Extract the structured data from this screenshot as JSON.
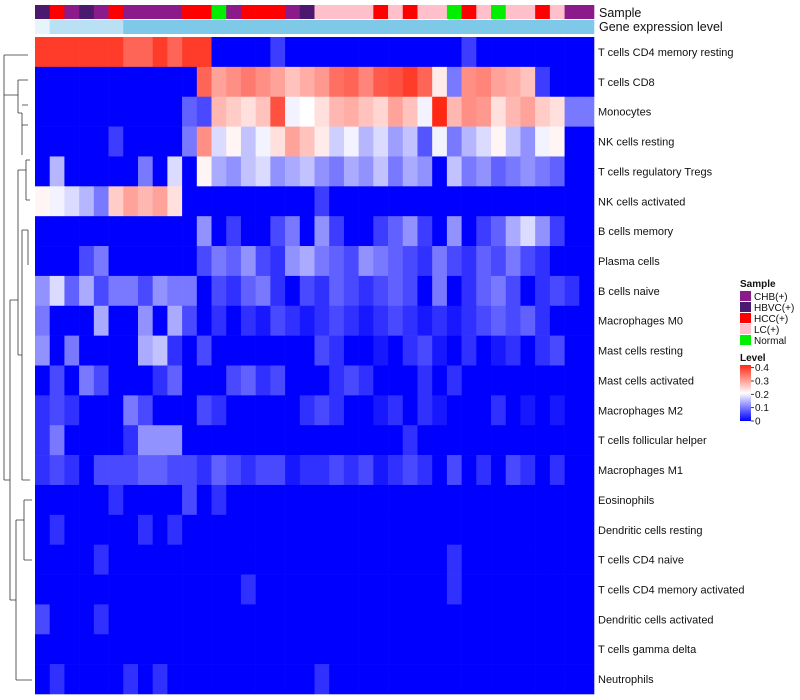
{
  "chart_data": {
    "type": "heatmap",
    "title": "",
    "annotation_tracks": [
      "Sample",
      "Gene expression level"
    ],
    "legend": {
      "sample_title": "Sample",
      "sample_groups": [
        {
          "label": "CHB(+)",
          "color": "#8B1A8B"
        },
        {
          "label": "HBVC(+)",
          "color": "#4B1A6E"
        },
        {
          "label": "HCC(+)",
          "color": "#FF0000"
        },
        {
          "label": "LC(+)",
          "color": "#FFC0CB"
        },
        {
          "label": "Normal",
          "color": "#00EE00"
        }
      ],
      "level_title": "Level",
      "level_ticks": [
        "0.4",
        "0.3",
        "0.2",
        "0.1",
        "0"
      ],
      "level_range": [
        0,
        0.42
      ]
    },
    "gene_expression_level_color": "#7EC8E8",
    "sample_group_sequence": [
      "HBVC",
      "HCC",
      "CHB",
      "HBVC",
      "CHB",
      "HCC",
      "CHB",
      "CHB",
      "CHB",
      "CHB",
      "HCC",
      "HCC",
      "Normal",
      "CHB",
      "HCC",
      "HCC",
      "HCC",
      "CHB",
      "HBVC",
      "LC",
      "LC",
      "LC",
      "LC",
      "HCC",
      "LC",
      "HCC",
      "LC",
      "LC",
      "Normal",
      "HCC",
      "LC",
      "Normal",
      "LC",
      "LC",
      "HCC",
      "LC",
      "CHB",
      "CHB"
    ],
    "row_labels": [
      "T cells CD4 memory resting",
      "T cells CD8",
      "Monocytes",
      "NK cells resting",
      "T cells regulatory  Tregs",
      "NK cells activated",
      "B cells memory",
      "Plasma cells",
      "B cells naive",
      "Macrophages M0",
      "Mast cells resting",
      "Mast cells activated",
      "Macrophages M2",
      "T cells follicular helper",
      "Macrophages M1",
      "Eosinophils",
      "Dendritic cells resting",
      "T cells CD4 naive",
      "T cells CD4 memory activated",
      "Dendritic cells activated",
      "T cells gamma delta",
      "Neutrophils"
    ],
    "values": [
      [
        0.4,
        0.4,
        0.4,
        0.4,
        0.4,
        0.4,
        0.36,
        0.36,
        0.4,
        0.36,
        0.4,
        0.4,
        0.0,
        0.0,
        0.0,
        0.0,
        0.05,
        0.0,
        0.0,
        0.0,
        0.0,
        0.0,
        0.0,
        0.0,
        0.0,
        0.0,
        0.0,
        0.0,
        0.0,
        0.05,
        0.0,
        0.0,
        0.0,
        0.0,
        0.0,
        0.0,
        0.0,
        0.0
      ],
      [
        0.0,
        0.0,
        0.0,
        0.0,
        0.0,
        0.0,
        0.0,
        0.0,
        0.0,
        0.0,
        0.0,
        0.36,
        0.3,
        0.32,
        0.34,
        0.32,
        0.3,
        0.27,
        0.29,
        0.31,
        0.35,
        0.36,
        0.33,
        0.37,
        0.38,
        0.4,
        0.36,
        0.23,
        0.1,
        0.32,
        0.33,
        0.3,
        0.29,
        0.27,
        0.05,
        0.0,
        0.0,
        0.0
      ],
      [
        0.0,
        0.0,
        0.0,
        0.0,
        0.0,
        0.0,
        0.0,
        0.0,
        0.0,
        0.0,
        0.08,
        0.06,
        0.28,
        0.26,
        0.24,
        0.27,
        0.38,
        0.2,
        0.21,
        0.24,
        0.28,
        0.29,
        0.27,
        0.25,
        0.3,
        0.27,
        0.2,
        0.42,
        0.28,
        0.32,
        0.31,
        0.24,
        0.28,
        0.3,
        0.26,
        0.24,
        0.1,
        0.1
      ],
      [
        0.0,
        0.0,
        0.0,
        0.0,
        0.0,
        0.05,
        0.0,
        0.0,
        0.0,
        0.0,
        0.1,
        0.32,
        0.18,
        0.22,
        0.16,
        0.2,
        0.24,
        0.3,
        0.27,
        0.23,
        0.17,
        0.2,
        0.15,
        0.18,
        0.13,
        0.16,
        0.07,
        0.2,
        0.1,
        0.15,
        0.18,
        0.22,
        0.16,
        0.12,
        0.2,
        0.22,
        0.0,
        0.0
      ],
      [
        0.0,
        0.15,
        0.0,
        0.0,
        0.0,
        0.0,
        0.0,
        0.1,
        0.0,
        0.18,
        0.0,
        0.22,
        0.14,
        0.12,
        0.16,
        0.18,
        0.12,
        0.14,
        0.16,
        0.12,
        0.1,
        0.14,
        0.12,
        0.16,
        0.1,
        0.14,
        0.12,
        0.0,
        0.16,
        0.1,
        0.12,
        0.08,
        0.1,
        0.12,
        0.1,
        0.08,
        0.0,
        0.0
      ],
      [
        0.22,
        0.2,
        0.18,
        0.15,
        0.1,
        0.26,
        0.3,
        0.28,
        0.3,
        0.24,
        0.0,
        0.0,
        0.0,
        0.0,
        0.0,
        0.0,
        0.0,
        0.0,
        0.0,
        0.05,
        0.0,
        0.0,
        0.0,
        0.0,
        0.0,
        0.0,
        0.0,
        0.0,
        0.0,
        0.0,
        0.0,
        0.0,
        0.0,
        0.0,
        0.0,
        0.0,
        0.0,
        0.0
      ],
      [
        0.0,
        0.0,
        0.0,
        0.0,
        0.0,
        0.0,
        0.0,
        0.0,
        0.0,
        0.0,
        0.0,
        0.12,
        0.0,
        0.05,
        0.0,
        0.0,
        0.06,
        0.1,
        0.0,
        0.12,
        0.05,
        0.0,
        0.0,
        0.05,
        0.08,
        0.12,
        0.05,
        0.0,
        0.12,
        0.0,
        0.05,
        0.08,
        0.14,
        0.18,
        0.12,
        0.05,
        0.0,
        0.0
      ],
      [
        0.0,
        0.0,
        0.0,
        0.06,
        0.1,
        0.0,
        0.0,
        0.0,
        0.0,
        0.0,
        0.0,
        0.06,
        0.1,
        0.08,
        0.12,
        0.06,
        0.04,
        0.12,
        0.14,
        0.1,
        0.08,
        0.06,
        0.12,
        0.1,
        0.08,
        0.06,
        0.04,
        0.1,
        0.06,
        0.04,
        0.08,
        0.06,
        0.1,
        0.06,
        0.04,
        0.0,
        0.0,
        0.0
      ],
      [
        0.12,
        0.18,
        0.08,
        0.14,
        0.06,
        0.1,
        0.1,
        0.06,
        0.12,
        0.1,
        0.1,
        0.0,
        0.06,
        0.04,
        0.08,
        0.1,
        0.04,
        0.0,
        0.06,
        0.04,
        0.08,
        0.06,
        0.04,
        0.06,
        0.08,
        0.06,
        0.0,
        0.1,
        0.0,
        0.04,
        0.08,
        0.1,
        0.06,
        0.0,
        0.04,
        0.06,
        0.04,
        0.0
      ],
      [
        0.1,
        0.0,
        0.0,
        0.0,
        0.14,
        0.0,
        0.0,
        0.12,
        0.0,
        0.14,
        0.06,
        0.0,
        0.04,
        0.0,
        0.04,
        0.02,
        0.06,
        0.04,
        0.02,
        0.04,
        0.06,
        0.04,
        0.02,
        0.04,
        0.06,
        0.04,
        0.02,
        0.04,
        0.02,
        0.04,
        0.06,
        0.08,
        0.06,
        0.08,
        0.04,
        0.0,
        0.0,
        0.0
      ],
      [
        0.12,
        0.0,
        0.1,
        0.0,
        0.0,
        0.0,
        0.0,
        0.14,
        0.16,
        0.04,
        0.0,
        0.06,
        0.0,
        0.0,
        0.0,
        0.0,
        0.0,
        0.0,
        0.0,
        0.06,
        0.04,
        0.0,
        0.0,
        0.02,
        0.0,
        0.04,
        0.06,
        0.02,
        0.0,
        0.04,
        0.0,
        0.02,
        0.04,
        0.0,
        0.04,
        0.06,
        0.0,
        0.0
      ],
      [
        0.0,
        0.06,
        0.0,
        0.1,
        0.06,
        0.0,
        0.0,
        0.0,
        0.04,
        0.08,
        0.0,
        0.0,
        0.0,
        0.06,
        0.08,
        0.04,
        0.06,
        0.0,
        0.0,
        0.0,
        0.04,
        0.06,
        0.04,
        0.0,
        0.0,
        0.0,
        0.04,
        0.0,
        0.04,
        0.0,
        0.0,
        0.0,
        0.0,
        0.0,
        0.0,
        0.0,
        0.0,
        0.0
      ],
      [
        0.04,
        0.06,
        0.04,
        0.0,
        0.0,
        0.0,
        0.1,
        0.06,
        0.0,
        0.0,
        0.0,
        0.06,
        0.04,
        0.0,
        0.0,
        0.0,
        0.0,
        0.0,
        0.04,
        0.06,
        0.04,
        0.0,
        0.0,
        0.02,
        0.04,
        0.0,
        0.04,
        0.02,
        0.0,
        0.0,
        0.0,
        0.04,
        0.0,
        0.02,
        0.0,
        0.02,
        0.0,
        0.0
      ],
      [
        0.04,
        0.1,
        0.0,
        0.0,
        0.0,
        0.0,
        0.04,
        0.12,
        0.12,
        0.12,
        0.0,
        0.0,
        0.0,
        0.0,
        0.0,
        0.0,
        0.0,
        0.0,
        0.0,
        0.0,
        0.0,
        0.0,
        0.0,
        0.0,
        0.0,
        0.04,
        0.0,
        0.0,
        0.0,
        0.0,
        0.0,
        0.0,
        0.0,
        0.0,
        0.0,
        0.0,
        0.0,
        0.0
      ],
      [
        0.04,
        0.06,
        0.04,
        0.0,
        0.06,
        0.06,
        0.06,
        0.08,
        0.08,
        0.06,
        0.06,
        0.04,
        0.08,
        0.06,
        0.04,
        0.06,
        0.06,
        0.02,
        0.04,
        0.04,
        0.06,
        0.04,
        0.06,
        0.02,
        0.04,
        0.06,
        0.04,
        0.0,
        0.06,
        0.0,
        0.04,
        0.0,
        0.06,
        0.04,
        0.0,
        0.04,
        0.0,
        0.0
      ],
      [
        0.0,
        0.0,
        0.0,
        0.0,
        0.0,
        0.04,
        0.0,
        0.0,
        0.0,
        0.0,
        0.06,
        0.0,
        0.04,
        0.0,
        0.0,
        0.0,
        0.0,
        0.0,
        0.0,
        0.0,
        0.0,
        0.0,
        0.0,
        0.0,
        0.0,
        0.0,
        0.0,
        0.0,
        0.0,
        0.0,
        0.0,
        0.0,
        0.0,
        0.0,
        0.0,
        0.0,
        0.0,
        0.0
      ],
      [
        0.0,
        0.04,
        0.0,
        0.0,
        0.0,
        0.0,
        0.0,
        0.04,
        0.0,
        0.04,
        0.0,
        0.0,
        0.0,
        0.0,
        0.0,
        0.0,
        0.0,
        0.0,
        0.0,
        0.0,
        0.0,
        0.0,
        0.0,
        0.0,
        0.0,
        0.0,
        0.0,
        0.0,
        0.0,
        0.0,
        0.0,
        0.0,
        0.0,
        0.0,
        0.0,
        0.0,
        0.0,
        0.0
      ],
      [
        0.0,
        0.0,
        0.0,
        0.0,
        0.04,
        0.0,
        0.0,
        0.0,
        0.0,
        0.0,
        0.0,
        0.0,
        0.0,
        0.0,
        0.0,
        0.0,
        0.0,
        0.0,
        0.0,
        0.0,
        0.0,
        0.0,
        0.0,
        0.0,
        0.0,
        0.0,
        0.0,
        0.0,
        0.04,
        0.0,
        0.0,
        0.0,
        0.0,
        0.0,
        0.0,
        0.0,
        0.0,
        0.0
      ],
      [
        0.0,
        0.0,
        0.0,
        0.0,
        0.0,
        0.0,
        0.0,
        0.0,
        0.0,
        0.0,
        0.0,
        0.0,
        0.0,
        0.0,
        0.04,
        0.0,
        0.0,
        0.0,
        0.0,
        0.0,
        0.0,
        0.0,
        0.0,
        0.0,
        0.0,
        0.0,
        0.0,
        0.0,
        0.04,
        0.0,
        0.0,
        0.0,
        0.0,
        0.0,
        0.0,
        0.0,
        0.0,
        0.0
      ],
      [
        0.06,
        0.0,
        0.0,
        0.0,
        0.04,
        0.0,
        0.0,
        0.0,
        0.0,
        0.0,
        0.0,
        0.0,
        0.0,
        0.0,
        0.0,
        0.0,
        0.0,
        0.0,
        0.0,
        0.0,
        0.0,
        0.0,
        0.0,
        0.0,
        0.0,
        0.0,
        0.0,
        0.0,
        0.0,
        0.0,
        0.0,
        0.0,
        0.0,
        0.0,
        0.0,
        0.0,
        0.0,
        0.0
      ],
      [
        0.0,
        0.0,
        0.0,
        0.0,
        0.0,
        0.0,
        0.0,
        0.0,
        0.0,
        0.0,
        0.0,
        0.0,
        0.0,
        0.0,
        0.0,
        0.0,
        0.0,
        0.0,
        0.0,
        0.0,
        0.0,
        0.0,
        0.0,
        0.0,
        0.0,
        0.0,
        0.0,
        0.0,
        0.0,
        0.0,
        0.0,
        0.0,
        0.0,
        0.0,
        0.0,
        0.0,
        0.0,
        0.0
      ],
      [
        0.0,
        0.04,
        0.0,
        0.0,
        0.0,
        0.0,
        0.04,
        0.0,
        0.04,
        0.0,
        0.0,
        0.0,
        0.0,
        0.0,
        0.0,
        0.0,
        0.0,
        0.0,
        0.0,
        0.04,
        0.0,
        0.0,
        0.0,
        0.0,
        0.0,
        0.0,
        0.0,
        0.0,
        0.0,
        0.0,
        0.0,
        0.0,
        0.0,
        0.0,
        0.0,
        0.0,
        0.0,
        0.0
      ]
    ]
  }
}
